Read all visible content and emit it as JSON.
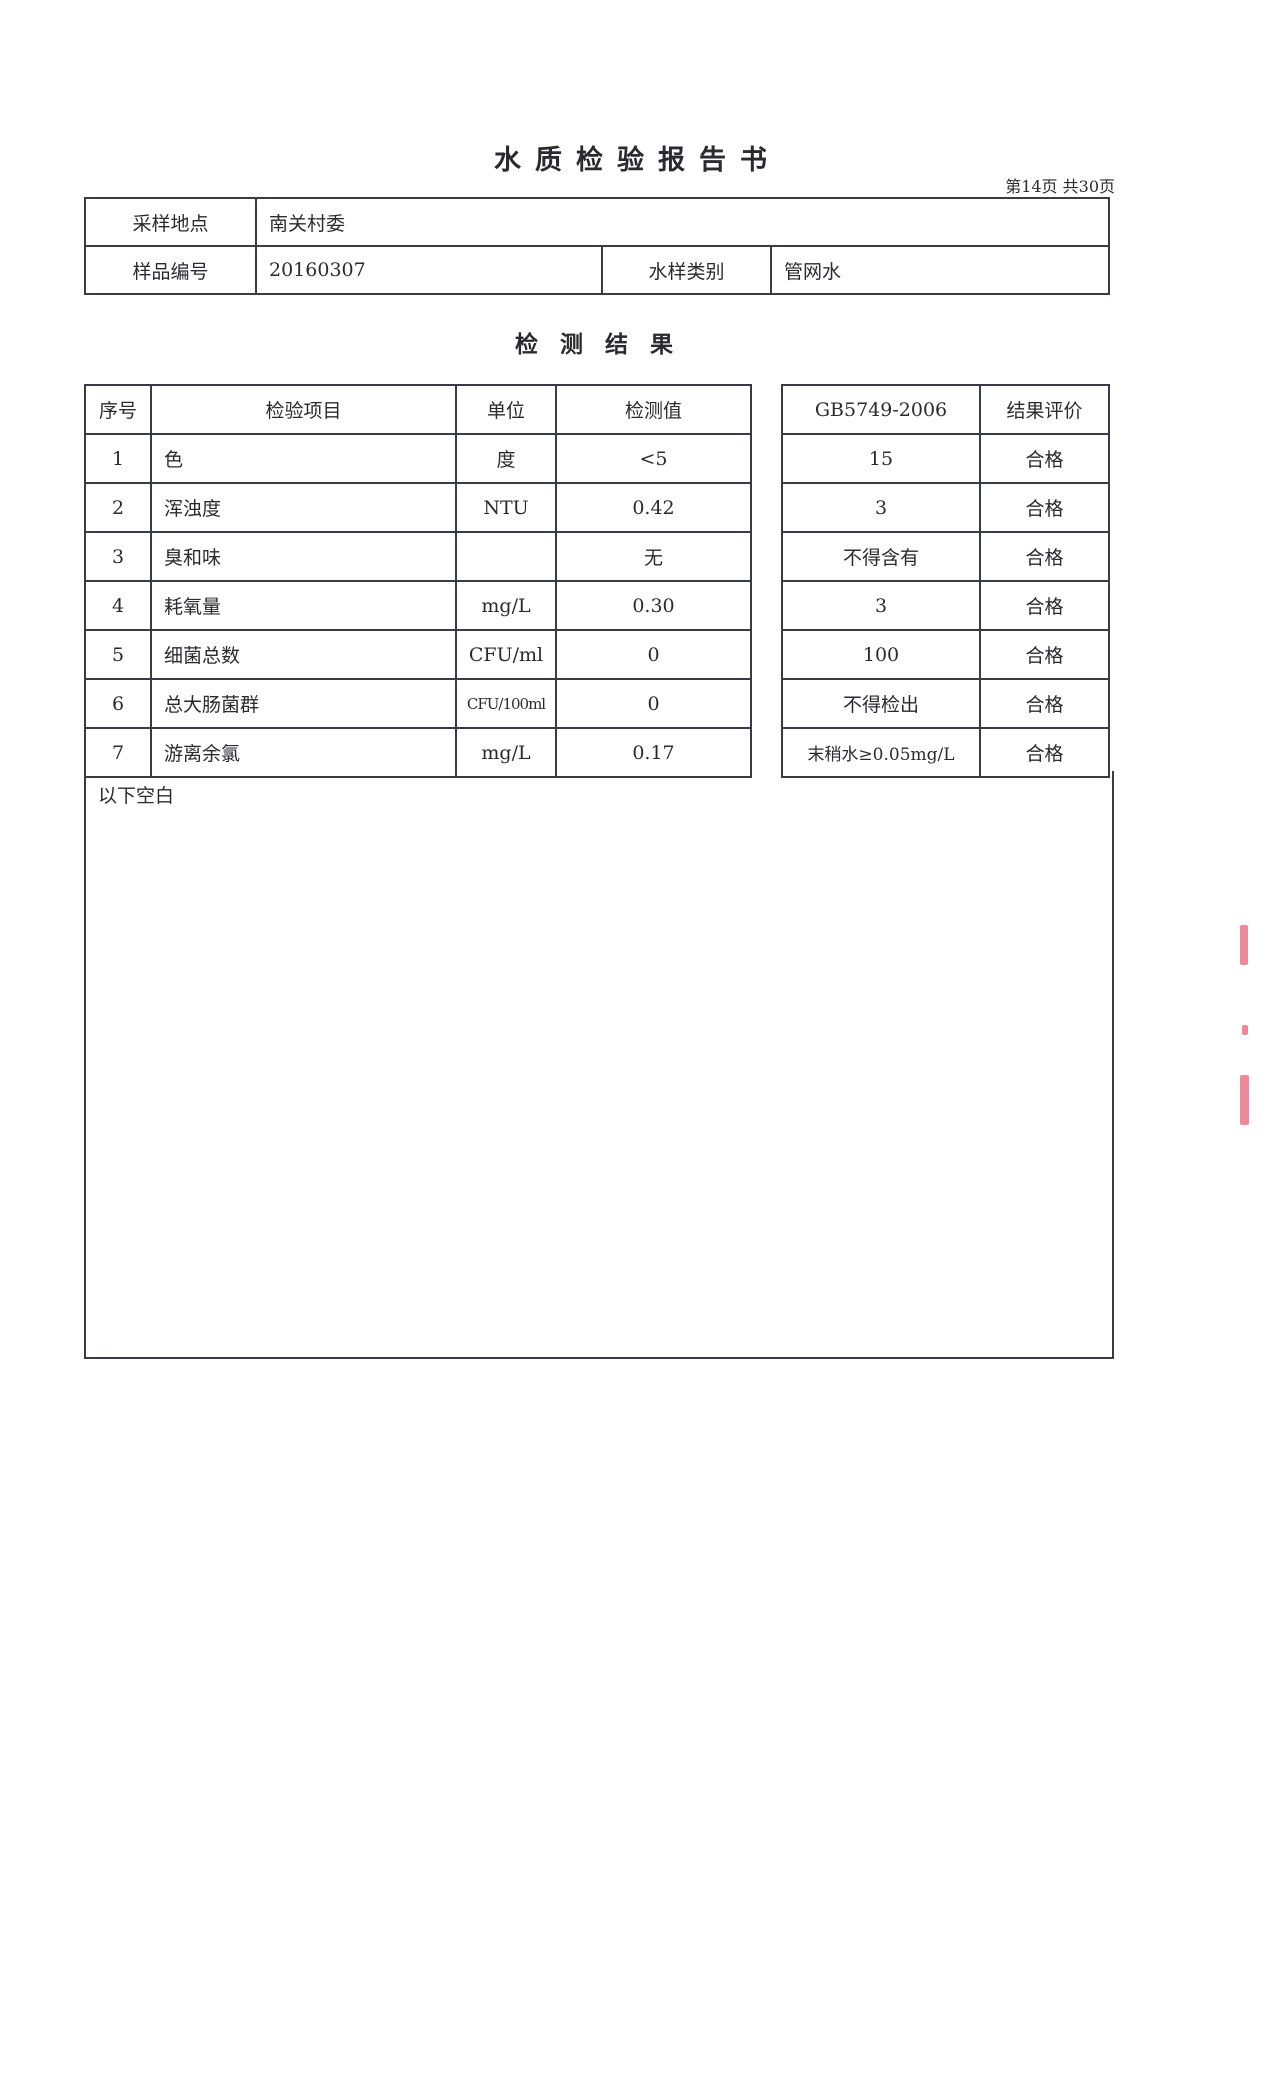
{
  "title": "水质检验报告书",
  "page_number": "第14页 共30页",
  "info": {
    "sampling_location_label": "采样地点",
    "sampling_location": "南关村委",
    "sample_id_label": "样品编号",
    "sample_id": "20160307",
    "water_type_label": "水样类别",
    "water_type": "管网水"
  },
  "section_title": "检测结果",
  "results": {
    "headers": [
      "序号",
      "检验项目",
      "单位",
      "检测值",
      "GB5749-2006",
      "结果评价"
    ],
    "rows": [
      {
        "no": "1",
        "item": "色",
        "unit": "度",
        "value": "<5",
        "standard": "15",
        "result": "合格"
      },
      {
        "no": "2",
        "item": "浑浊度",
        "unit": "NTU",
        "value": "0.42",
        "standard": "3",
        "result": "合格"
      },
      {
        "no": "3",
        "item": "臭和味",
        "unit": "",
        "value": "无",
        "standard": "不得含有",
        "result": "合格"
      },
      {
        "no": "4",
        "item": "耗氧量",
        "unit": "mg/L",
        "value": "0.30",
        "standard": "3",
        "result": "合格"
      },
      {
        "no": "5",
        "item": "细菌总数",
        "unit": "CFU/ml",
        "value": "0",
        "standard": "100",
        "result": "合格"
      },
      {
        "no": "6",
        "item": "总大肠菌群",
        "unit": "CFU/100ml",
        "value": "0",
        "standard": "不得检出",
        "result": "合格"
      },
      {
        "no": "7",
        "item": "游离余氯",
        "unit": "mg/L",
        "value": "0.17",
        "standard": "末稍水≥0.05mg/L",
        "result": "合格"
      }
    ],
    "blank_note": "以下空白"
  }
}
